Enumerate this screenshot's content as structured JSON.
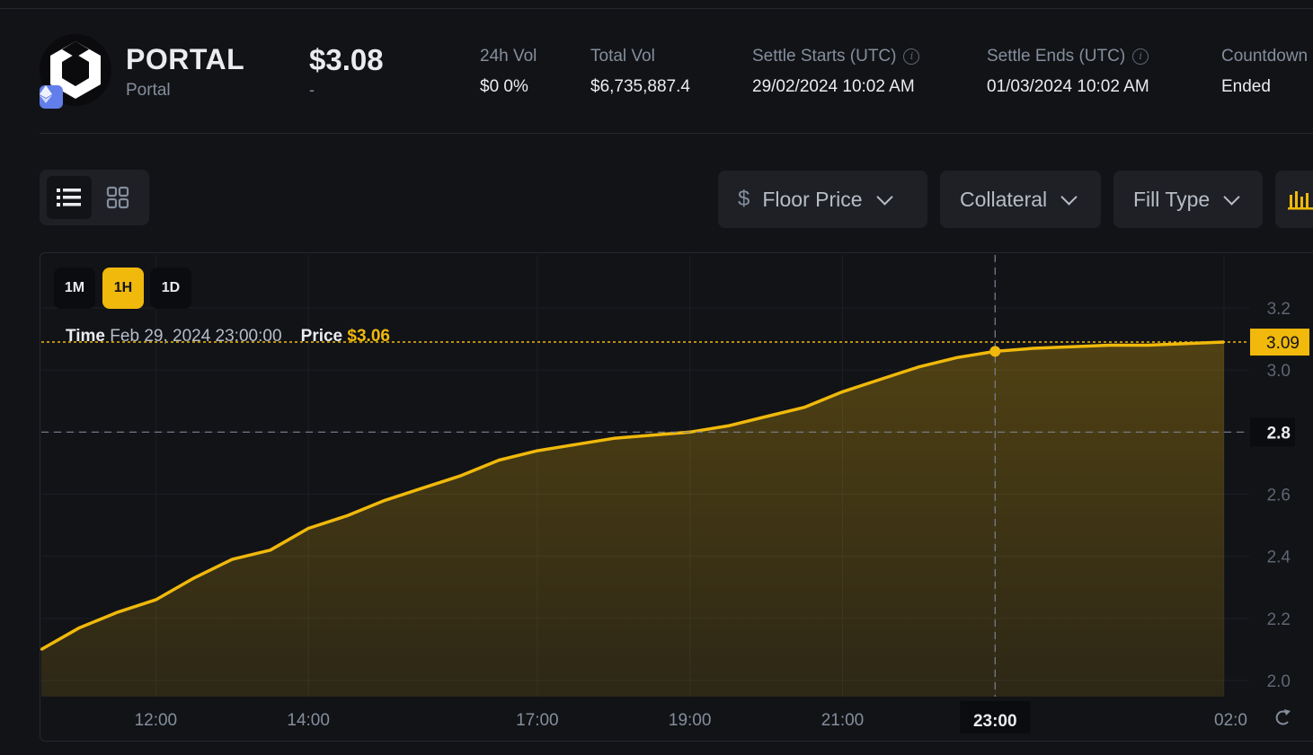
{
  "token": {
    "name": "PORTAL",
    "subname": "Portal"
  },
  "price": {
    "value": "$3.08",
    "change": "-"
  },
  "stats": [
    {
      "label": "24h Vol",
      "value": "$0 0%",
      "info": false
    },
    {
      "label": "Total Vol",
      "value": "$6,735,887.4",
      "info": false
    },
    {
      "label": "Settle Starts (UTC)",
      "value": "29/02/2024 10:02 AM",
      "info": true
    },
    {
      "label": "Settle Ends (UTC)",
      "value": "01/03/2024 10:02 AM",
      "info": true
    },
    {
      "label": "Countdown",
      "value": "Ended",
      "info": false
    }
  ],
  "toolbar": {
    "dropdowns": [
      {
        "label": "Floor Price",
        "icon": "dollar-icon"
      },
      {
        "label": "Collateral"
      },
      {
        "label": "Fill Type"
      }
    ]
  },
  "timeframes": {
    "options": [
      "1M",
      "1H",
      "1D"
    ],
    "active": "1H"
  },
  "tooltip": {
    "time_label": "Time",
    "time_value": "Feb 29, 2024 23:00:00",
    "price_label": "Price",
    "price_value": "$3.06"
  },
  "colors": {
    "accent": "#f0b90b",
    "background": "#121317",
    "panel": "#1e2026"
  },
  "chart_data": {
    "type": "area",
    "y_ticks": [
      "3.2",
      "3.0",
      "2.8",
      "2.6",
      "2.4",
      "2.2",
      "2.0"
    ],
    "ylim": [
      2.0,
      3.2
    ],
    "x_tick_labels": [
      "12:00",
      "14:00",
      "17:00",
      "19:00",
      "21:00",
      "23:00",
      "02:0"
    ],
    "current_price_label": "3.09",
    "crosshair_y_label": "2.8",
    "crosshair_x_label": "23:00",
    "series": [
      {
        "x": [
          "10:30",
          "11:00",
          "11:30",
          "12:00",
          "12:30",
          "13:00",
          "13:30",
          "14:00",
          "14:30",
          "15:00",
          "15:30",
          "16:00",
          "16:30",
          "17:00",
          "17:30",
          "18:00",
          "18:30",
          "19:00",
          "19:30",
          "20:00",
          "20:30",
          "21:00",
          "21:30",
          "22:00",
          "22:30",
          "23:00",
          "23:30",
          "00:00",
          "00:30",
          "01:00",
          "01:30",
          "02:00"
        ],
        "values": [
          2.1,
          2.17,
          2.22,
          2.26,
          2.33,
          2.39,
          2.42,
          2.49,
          2.53,
          2.58,
          2.62,
          2.66,
          2.71,
          2.74,
          2.76,
          2.78,
          2.79,
          2.8,
          2.82,
          2.85,
          2.88,
          2.93,
          2.97,
          3.01,
          3.04,
          3.06,
          3.07,
          3.075,
          3.08,
          3.08,
          3.085,
          3.09
        ]
      }
    ],
    "grid": true
  }
}
